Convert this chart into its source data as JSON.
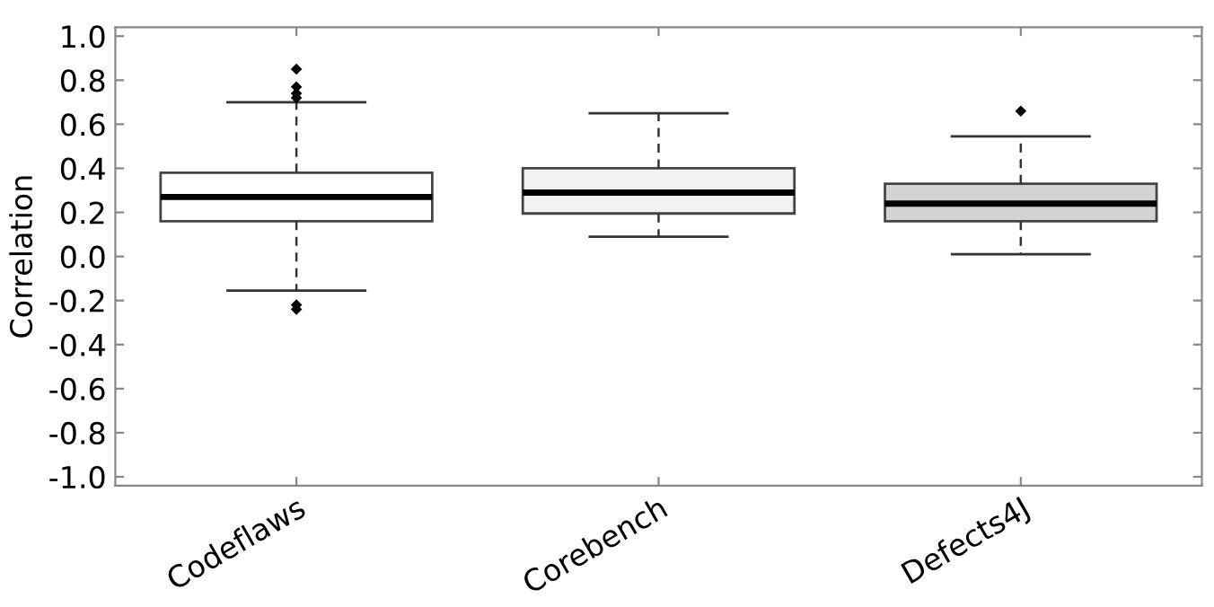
{
  "chart_data": {
    "type": "box",
    "ylabel": "Correlation",
    "categories": [
      "Codeflaws",
      "Corebench",
      "Defects4J"
    ],
    "colors": [
      "#ffffff",
      "#f2f2f2",
      "#d3d3d3"
    ],
    "boxes": [
      {
        "low": -0.155,
        "q1": 0.16,
        "median": 0.27,
        "q3": 0.38,
        "high": 0.7,
        "outliers": [
          0.85,
          0.77,
          0.74,
          0.72,
          -0.22,
          -0.24
        ]
      },
      {
        "low": 0.09,
        "q1": 0.195,
        "median": 0.29,
        "q3": 0.4,
        "high": 0.65
      },
      {
        "low": 0.01,
        "q1": 0.16,
        "median": 0.24,
        "q3": 0.33,
        "high": 0.545,
        "outliers": [
          0.66
        ]
      }
    ],
    "ylim": [
      -1.04,
      1.04
    ],
    "yticks": [
      {
        "value": -1.0,
        "label": "-1.0"
      },
      {
        "value": -0.8,
        "label": "-0.8"
      },
      {
        "value": -0.6,
        "label": "-0.6"
      },
      {
        "value": -0.4,
        "label": "-0.4"
      },
      {
        "value": -0.2,
        "label": "-0.2"
      },
      {
        "value": 0.0,
        "label": "0.0"
      },
      {
        "value": 0.2,
        "label": "0.2"
      },
      {
        "value": 0.4,
        "label": "0.4"
      },
      {
        "value": 0.6,
        "label": "0.6"
      },
      {
        "value": 0.8,
        "label": "0.8"
      },
      {
        "value": 1.0,
        "label": "1.0"
      }
    ],
    "grid": false,
    "marker": "diamond"
  }
}
